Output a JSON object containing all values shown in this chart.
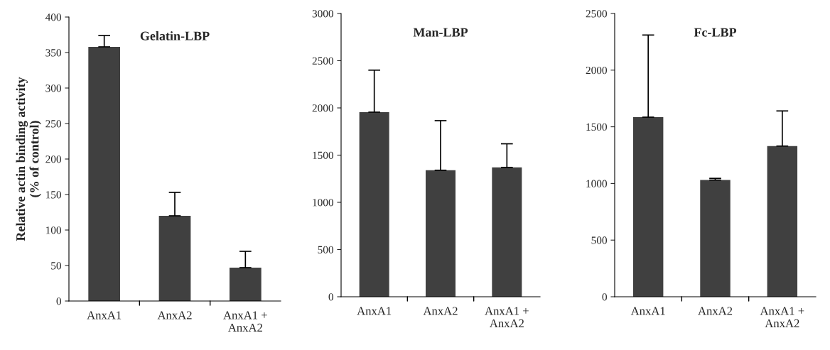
{
  "chart_data": [
    {
      "type": "bar",
      "title": "Gelatin-LBP",
      "ylabel": "Relative actin binding activity\n(% of control)",
      "categories": [
        "AnxA1",
        "AnxA2",
        "AnxA1 +\nAnxA2"
      ],
      "values": [
        358,
        120,
        47
      ],
      "errors": [
        [
          358,
          374
        ],
        [
          120,
          153
        ],
        [
          47,
          70
        ]
      ],
      "color": "#404040",
      "ylim": [
        0,
        400
      ],
      "yticks": [
        0,
        50,
        100,
        150,
        200,
        250,
        300,
        350,
        400
      ],
      "grid": false
    },
    {
      "type": "bar",
      "title": "Man-LBP",
      "categories": [
        "AnxA1",
        "AnxA2",
        "AnxA1 +\nAnxA2"
      ],
      "values": [
        1955,
        1340,
        1370
      ],
      "errors": [
        [
          1955,
          2400
        ],
        [
          1340,
          1865
        ],
        [
          1370,
          1620
        ]
      ],
      "color": "#404040",
      "ylim": [
        0,
        3000
      ],
      "yticks": [
        0,
        500,
        1000,
        1500,
        2000,
        2500,
        3000
      ],
      "grid": false
    },
    {
      "type": "bar",
      "title": "Fc-LBP",
      "categories": [
        "AnxA1",
        "AnxA2",
        "AnxA1 +\nAnxA2"
      ],
      "values": [
        1585,
        1030,
        1330
      ],
      "errors": [
        [
          1585,
          2310
        ],
        [
          1030,
          1045
        ],
        [
          1330,
          1640
        ]
      ],
      "color": "#404040",
      "ylim": [
        0,
        2500
      ],
      "yticks": [
        0,
        500,
        1000,
        1500,
        2000,
        2500
      ],
      "grid": false
    }
  ]
}
